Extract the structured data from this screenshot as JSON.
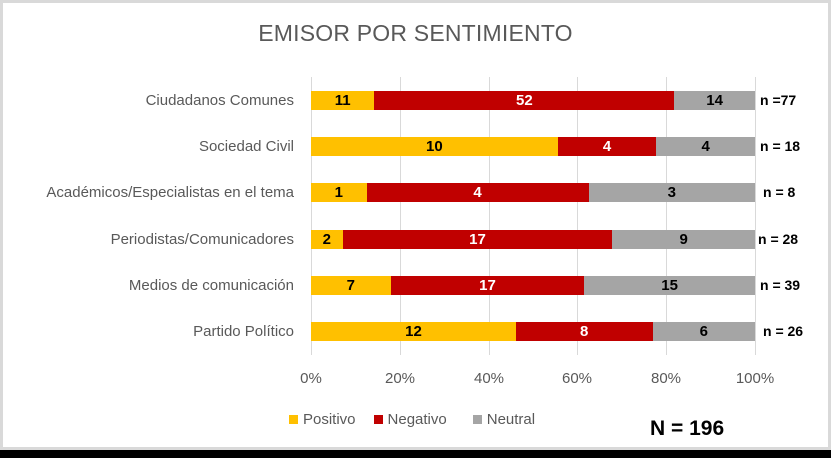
{
  "chart_data": {
    "type": "bar",
    "orientation": "horizontal",
    "stacked": "percent",
    "title": "EMISOR POR SENTIMIENTO",
    "xlabel": "",
    "ylabel": "",
    "xlim": [
      0,
      100
    ],
    "x_ticks": [
      "0%",
      "20%",
      "40%",
      "60%",
      "80%",
      "100%"
    ],
    "grid": true,
    "legend_position": "bottom-left",
    "categories": [
      "Ciudadanos Comunes",
      "Sociedad Civil",
      "Académicos/Especialistas en el tema",
      "Periodistas/Comunicadores",
      "Medios de comunicación",
      "Partido Político"
    ],
    "series": [
      {
        "name": "Positivo",
        "color": "#ffc000",
        "values": [
          11,
          10,
          1,
          2,
          7,
          12
        ]
      },
      {
        "name": "Negativo",
        "color": "#c00000",
        "values": [
          52,
          4,
          4,
          17,
          17,
          8
        ]
      },
      {
        "name": "Neutral",
        "color": "#a5a5a5",
        "values": [
          14,
          4,
          3,
          9,
          15,
          6
        ]
      }
    ],
    "n_labels": [
      "n =77",
      "n = 18",
      "n = 8",
      "n = 28",
      "n = 39",
      "n = 26"
    ],
    "total_label": "N = 196"
  }
}
